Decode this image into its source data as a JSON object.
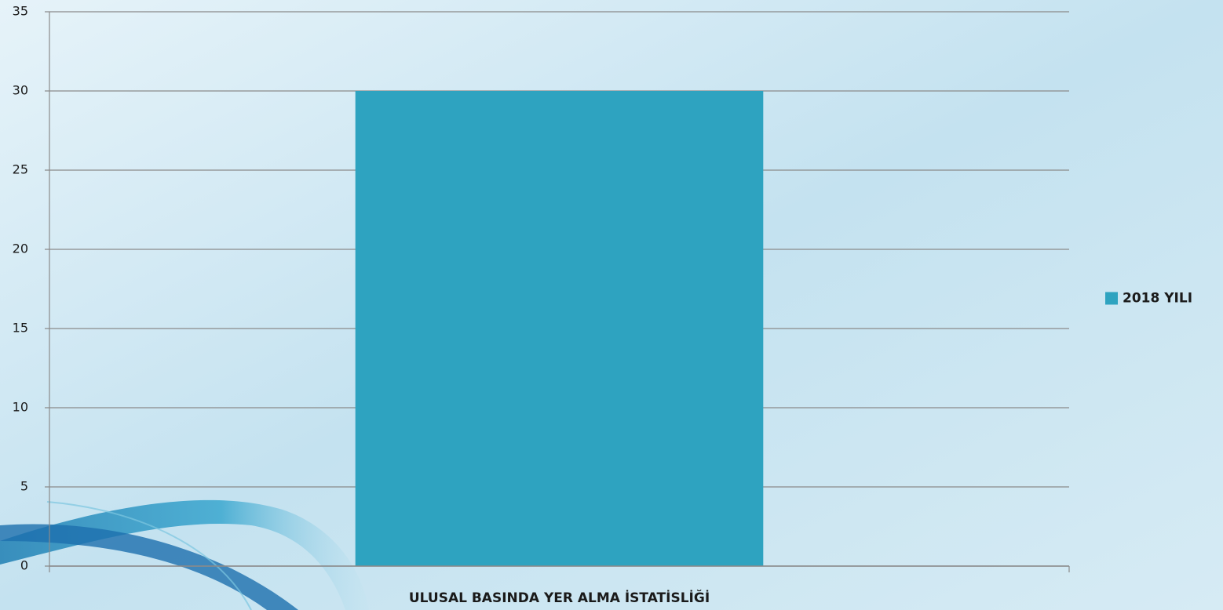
{
  "chart_data": {
    "type": "bar",
    "categories": [
      "ULUSAL BASINDA YER ALMA İSTATİSLİĞİ"
    ],
    "series": [
      {
        "name": "2018 YILI",
        "color": "#2ea3c0",
        "values": [
          30
        ]
      }
    ],
    "ylim": [
      0,
      35
    ],
    "yticks": [
      0,
      5,
      10,
      15,
      20,
      25,
      30,
      35
    ],
    "grid": true,
    "legend": "right"
  }
}
